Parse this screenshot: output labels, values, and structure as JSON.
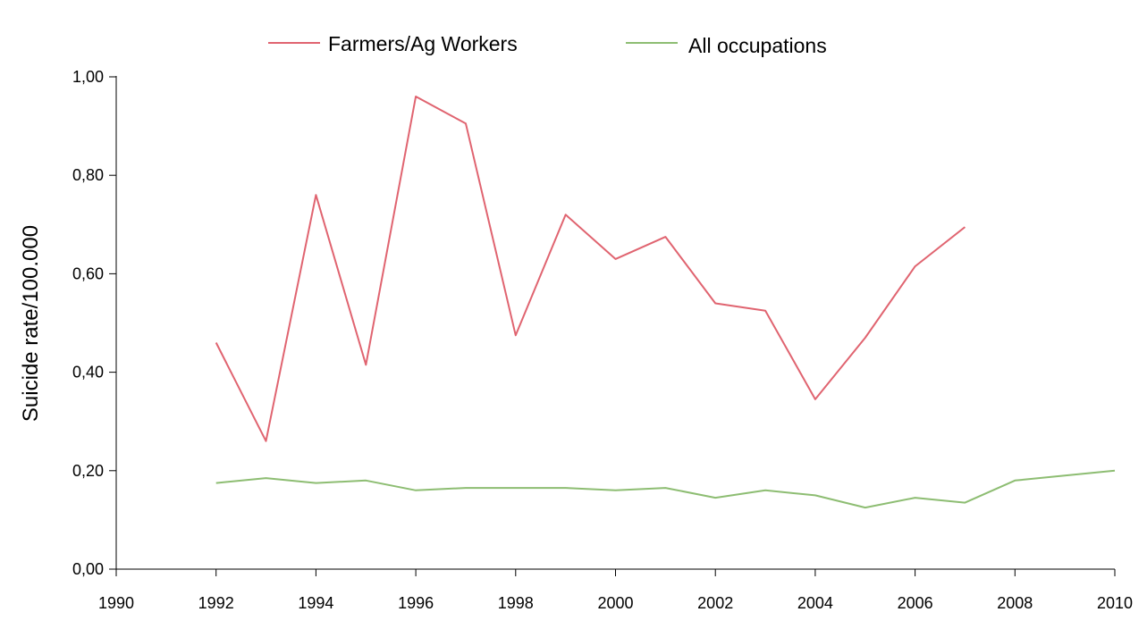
{
  "chart_data": {
    "type": "line",
    "title": "",
    "xlabel": "",
    "ylabel": "Suicide rate/100.000",
    "xlim": [
      1990,
      2010
    ],
    "ylim": [
      0,
      1
    ],
    "x_ticks": [
      1990,
      1992,
      1994,
      1996,
      1998,
      2000,
      2002,
      2004,
      2006,
      2008,
      2010
    ],
    "x_tick_labels": [
      "1990",
      "1992",
      "1994",
      "1996",
      "1998",
      "2000",
      "2002",
      "2004",
      "2006",
      "2008",
      "2010"
    ],
    "y_ticks": [
      0,
      0.2,
      0.4,
      0.6,
      0.8,
      1.0
    ],
    "y_tick_labels": [
      "0,00",
      "0,20",
      "0,40",
      "0,60",
      "0,80",
      "1,00"
    ],
    "grid": false,
    "legend_position": "top",
    "series": [
      {
        "name": "Farmers/Ag Workers",
        "color": "#e06470",
        "points": [
          [
            1992,
            0.46
          ],
          [
            1993,
            0.26
          ],
          [
            1994,
            0.76
          ],
          [
            1995,
            0.415
          ],
          [
            1996,
            0.96
          ],
          [
            1997,
            0.905
          ],
          [
            1998,
            0.475
          ],
          [
            1999,
            0.72
          ],
          [
            2000,
            0.63
          ],
          [
            2001,
            0.675
          ],
          [
            2002,
            0.54
          ],
          [
            2003,
            0.525
          ],
          [
            2004,
            0.345
          ],
          [
            2005,
            0.47
          ],
          [
            2006,
            0.615
          ],
          [
            2007,
            0.695
          ]
        ]
      },
      {
        "name": "All occupations",
        "color": "#8dbd72",
        "points": [
          [
            1992,
            0.175
          ],
          [
            1993,
            0.185
          ],
          [
            1994,
            0.175
          ],
          [
            1995,
            0.18
          ],
          [
            1996,
            0.16
          ],
          [
            1997,
            0.165
          ],
          [
            1998,
            0.165
          ],
          [
            1999,
            0.165
          ],
          [
            2000,
            0.16
          ],
          [
            2001,
            0.165
          ],
          [
            2002,
            0.145
          ],
          [
            2003,
            0.16
          ],
          [
            2004,
            0.15
          ],
          [
            2005,
            0.125
          ],
          [
            2006,
            0.145
          ],
          [
            2007,
            0.135
          ],
          [
            2008,
            0.18
          ],
          [
            2009,
            0.19
          ],
          [
            2010,
            0.2
          ]
        ]
      }
    ]
  }
}
